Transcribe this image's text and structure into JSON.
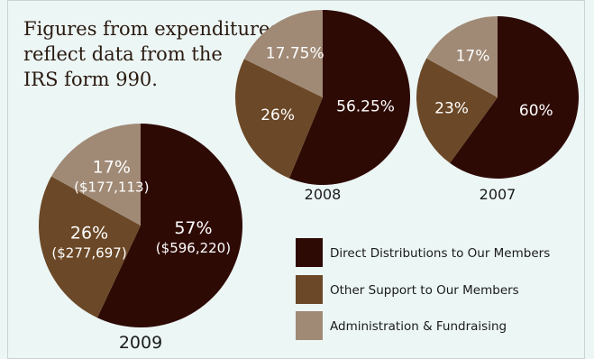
{
  "note": {
    "lines": [
      "Figures from expenditures",
      "reflect data from the",
      "IRS form 990."
    ]
  },
  "colors": {
    "background": "#ecf6f5",
    "direct": "#2e0a05",
    "other": "#6b4827",
    "admin": "#a08a76"
  },
  "chart_data": [
    {
      "type": "pie",
      "title": "2009",
      "slices": [
        {
          "label": "Direct Distributions to Our Members",
          "value": 57,
          "display": "57%",
          "amount": "($596,220)"
        },
        {
          "label": "Other Support to Our Members",
          "value": 26,
          "display": "26%",
          "amount": "($277,697)"
        },
        {
          "label": "Administration & Fundraising",
          "value": 17,
          "display": "17%",
          "amount": "($177,113)"
        }
      ]
    },
    {
      "type": "pie",
      "title": "2008",
      "slices": [
        {
          "label": "Direct Distributions to Our Members",
          "value": 56.25,
          "display": "56.25%"
        },
        {
          "label": "Other Support to Our Members",
          "value": 26,
          "display": "26%"
        },
        {
          "label": "Administration & Fundraising",
          "value": 17.75,
          "display": "17.75%"
        }
      ]
    },
    {
      "type": "pie",
      "title": "2007",
      "slices": [
        {
          "label": "Direct Distributions to Our Members",
          "value": 60,
          "display": "60%"
        },
        {
          "label": "Other Support to Our Members",
          "value": 23,
          "display": "23%"
        },
        {
          "label": "Administration & Fundraising",
          "value": 17,
          "display": "17%"
        }
      ]
    }
  ],
  "legend": {
    "items": [
      {
        "label": "Direct Distributions to Our Members",
        "color_key": "direct"
      },
      {
        "label": "Other Support to Our Members",
        "color_key": "other"
      },
      {
        "label": "Administration & Fundraising",
        "color_key": "admin"
      }
    ]
  }
}
